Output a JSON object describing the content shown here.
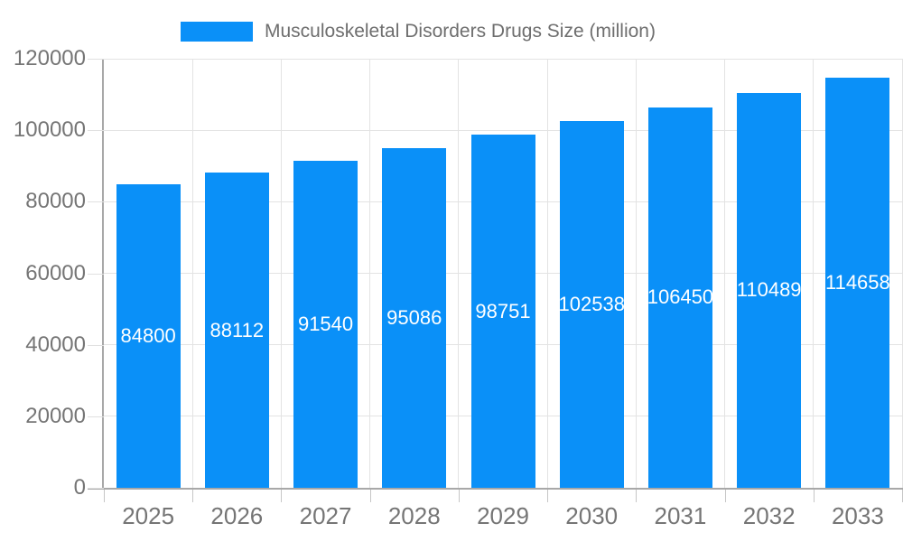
{
  "legend": {
    "label": "Musculoskeletal Disorders Drugs Size (million)"
  },
  "chart_data": {
    "type": "bar",
    "title": "Musculoskeletal Disorders Drugs Size (million)",
    "categories": [
      "2025",
      "2026",
      "2027",
      "2028",
      "2029",
      "2030",
      "2031",
      "2032",
      "2033"
    ],
    "series": [
      {
        "name": "Musculoskeletal Disorders Drugs Size (million)",
        "values": [
          84800,
          88112,
          91540,
          95086,
          98751,
          102538,
          106450,
          110489,
          114658
        ]
      }
    ],
    "value_labels": [
      "84800",
      "88112",
      "91540",
      "95086",
      "98751",
      "102538",
      "106450",
      "110489",
      "114658"
    ],
    "xlabel": "",
    "ylabel": "",
    "ylim": [
      0,
      120000
    ],
    "y_ticks": [
      0,
      20000,
      40000,
      60000,
      80000,
      100000,
      120000
    ],
    "y_tick_labels": [
      "0",
      "20000",
      "40000",
      "60000",
      "80000",
      "100000",
      "120000"
    ],
    "grid": true,
    "legend_position": "top",
    "value_label_position": "inside-center"
  },
  "colors": {
    "bar": "#0a90f8",
    "value_label": "#ffffff",
    "axis_text": "#757575",
    "legend_text": "#6e6e6e",
    "gridline": "#e3e3e3",
    "axis_line": "#a8a8a8",
    "tick_x": "#c6c6c6",
    "tick_y": "#e0e0e0",
    "background": "#ffffff"
  }
}
